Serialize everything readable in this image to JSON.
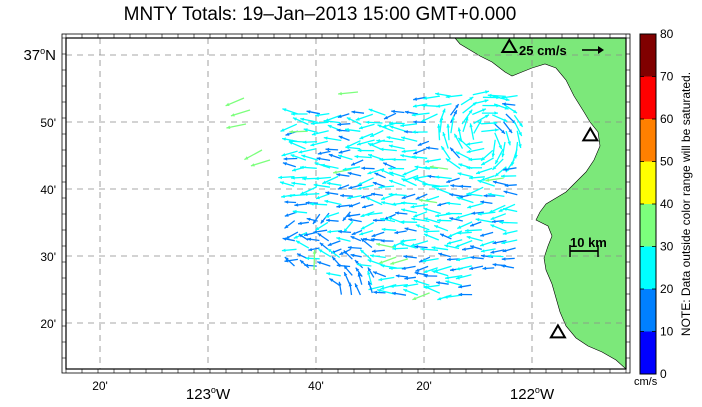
{
  "title": "MNTY Totals: 19–Jan–2013 15:00 GMT+0.000",
  "map": {
    "lat_labels": [
      {
        "lat": 37.0,
        "text": "37",
        "suffix": "N",
        "major": true
      },
      {
        "lat": 36.8333,
        "text": "50'",
        "suffix": "",
        "major": false
      },
      {
        "lat": 36.6667,
        "text": "40'",
        "suffix": "",
        "major": false
      },
      {
        "lat": 36.5,
        "text": "30'",
        "suffix": "",
        "major": false
      },
      {
        "lat": 36.3333,
        "text": "20'",
        "suffix": "",
        "major": false
      }
    ],
    "lon_labels": [
      {
        "lon": -123.3333,
        "text": "20'",
        "suffix": "",
        "major": false
      },
      {
        "lon": -123.0,
        "text": "123",
        "suffix": "W",
        "major": true
      },
      {
        "lon": -122.6667,
        "text": "40'",
        "suffix": "",
        "major": false
      },
      {
        "lon": -122.3333,
        "text": "20'",
        "suffix": "",
        "major": false
      },
      {
        "lon": -122.0,
        "text": "122",
        "suffix": "W",
        "major": true
      }
    ],
    "reference_vector_label": "25 cm/s",
    "scale_bar_label": "10 km",
    "land_color": "#7CE87A",
    "stations": [
      {
        "lon": -122.07,
        "lat": 37.02
      },
      {
        "lon": -121.82,
        "lat": 36.8
      },
      {
        "lon": -121.92,
        "lat": 36.31
      }
    ]
  },
  "colorbar": {
    "ticks": [
      "0",
      "10",
      "20",
      "30",
      "40",
      "50",
      "60",
      "70",
      "80"
    ],
    "colors": [
      "#0000FF",
      "#0080FF",
      "#00FFFF",
      "#7CFF7C",
      "#FFFF00",
      "#FF8000",
      "#FF0000",
      "#800000"
    ],
    "note": "NOTE: Data outside color range will be saturated.",
    "units": "cm/s"
  }
}
